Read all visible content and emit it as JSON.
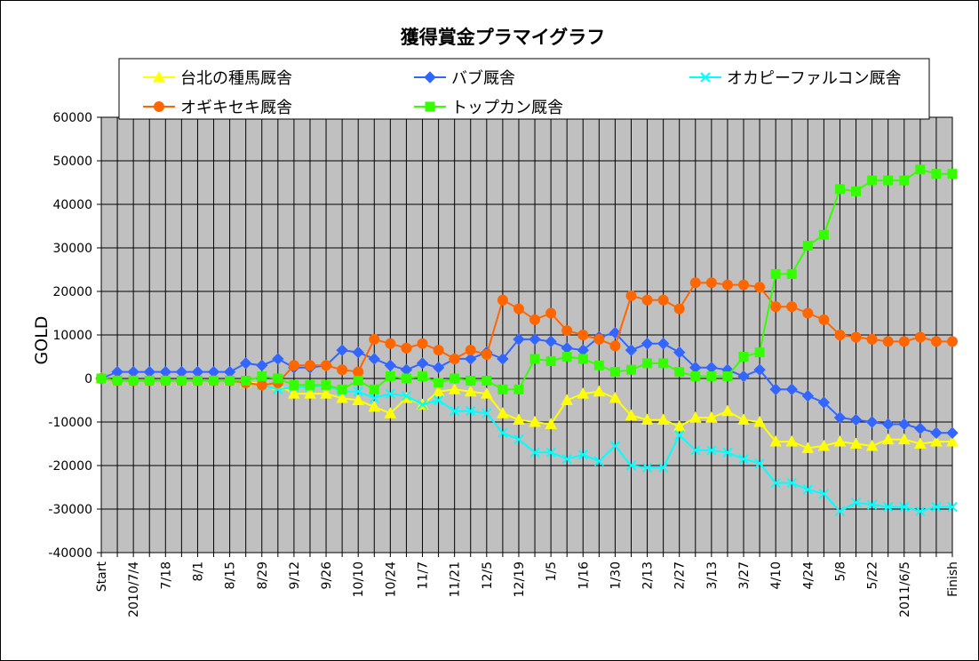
{
  "chart_data": {
    "type": "line",
    "title": "獲得賞金プラマイグラフ",
    "ylabel": "GOLD",
    "xlabel": "",
    "ylim": [
      -40000,
      60000
    ],
    "yticks": [
      60000,
      50000,
      40000,
      30000,
      20000,
      10000,
      0,
      -10000,
      -20000,
      -30000,
      -40000
    ],
    "ytick_labels": [
      "60000",
      "50000",
      "40000",
      "30000",
      "20000",
      "10000",
      "0",
      "-10000",
      "-20000",
      "-30000",
      "-40000"
    ],
    "grid": true,
    "legend_position": "top",
    "n_points": 54,
    "xtick_labels": [
      {
        "i": 0,
        "label": "Start"
      },
      {
        "i": 2,
        "label": "2010/7/4"
      },
      {
        "i": 4,
        "label": "7/18"
      },
      {
        "i": 6,
        "label": "8/1"
      },
      {
        "i": 8,
        "label": "8/15"
      },
      {
        "i": 10,
        "label": "8/29"
      },
      {
        "i": 12,
        "label": "9/12"
      },
      {
        "i": 14,
        "label": "9/26"
      },
      {
        "i": 16,
        "label": "10/10"
      },
      {
        "i": 18,
        "label": "10/24"
      },
      {
        "i": 20,
        "label": "11/7"
      },
      {
        "i": 22,
        "label": "11/21"
      },
      {
        "i": 24,
        "label": "12/5"
      },
      {
        "i": 26,
        "label": "12/19"
      },
      {
        "i": 28,
        "label": "1/5"
      },
      {
        "i": 30,
        "label": "1/16"
      },
      {
        "i": 32,
        "label": "1/30"
      },
      {
        "i": 34,
        "label": "2/13"
      },
      {
        "i": 36,
        "label": "2/27"
      },
      {
        "i": 38,
        "label": "3/13"
      },
      {
        "i": 40,
        "label": "3/27"
      },
      {
        "i": 42,
        "label": "4/10"
      },
      {
        "i": 44,
        "label": "4/24"
      },
      {
        "i": 46,
        "label": "5/8"
      },
      {
        "i": 48,
        "label": "5/22"
      },
      {
        "i": 50,
        "label": "2011/6/5"
      },
      {
        "i": 53,
        "label": "Finish"
      }
    ],
    "series": [
      {
        "name": "台北の種馬厩舎",
        "color": "#ffff00",
        "marker": "triangle",
        "values": [
          0,
          -500,
          -500,
          -500,
          -500,
          -500,
          -500,
          -500,
          -500,
          -1000,
          -1000,
          -1500,
          -3500,
          -3500,
          -3500,
          -4500,
          -5000,
          -6500,
          -8000,
          -4500,
          -6000,
          -3000,
          -2500,
          -3000,
          -3500,
          -8000,
          -9500,
          -10000,
          -10500,
          -5000,
          -3500,
          -3000,
          -4500,
          -8500,
          -9500,
          -9500,
          -11000,
          -9000,
          -9000,
          -7500,
          -9500,
          -10000,
          -14500,
          -14500,
          -16000,
          -15500,
          -14500,
          -15000,
          -15500,
          -14000,
          -14000,
          -15000,
          -14500,
          -14500
        ]
      },
      {
        "name": "バブ厩舎",
        "color": "#3366ff",
        "marker": "diamond",
        "values": [
          0,
          1500,
          1500,
          1500,
          1500,
          1500,
          1500,
          1500,
          1500,
          3500,
          3000,
          4500,
          2500,
          2500,
          3000,
          6500,
          6000,
          4500,
          3000,
          2000,
          3500,
          2500,
          4500,
          4500,
          6000,
          4500,
          9000,
          9000,
          8500,
          7000,
          6500,
          9500,
          10500,
          6500,
          8000,
          8000,
          6000,
          2500,
          2500,
          2000,
          500,
          2000,
          -2500,
          -2500,
          -4000,
          -5500,
          -9000,
          -9500,
          -10000,
          -10500,
          -10500,
          -11500,
          -12500,
          -12500
        ]
      },
      {
        "name": "オカピーファルコン厩舎",
        "color": "#00ffff",
        "marker": "x",
        "values": [
          0,
          -500,
          -500,
          -500,
          -500,
          -500,
          -500,
          -500,
          -500,
          -1000,
          -1500,
          -2500,
          -2000,
          -2000,
          -1500,
          -3000,
          -3000,
          -4500,
          -3500,
          -4000,
          -6000,
          -5000,
          -7500,
          -7500,
          -8000,
          -12500,
          -14000,
          -17000,
          -17000,
          -18500,
          -17500,
          -19000,
          -15500,
          -20000,
          -20500,
          -20500,
          -13000,
          -16500,
          -16500,
          -17000,
          -18500,
          -19500,
          -24000,
          -24000,
          -25500,
          -26500,
          -30500,
          -28500,
          -29000,
          -29500,
          -29500,
          -30500,
          -29500,
          -29500
        ]
      },
      {
        "name": "オギキセキ厩舎",
        "color": "#ff6600",
        "marker": "circle",
        "values": [
          0,
          -500,
          -500,
          -500,
          -500,
          -500,
          -500,
          -500,
          -500,
          -1000,
          -1500,
          -1000,
          3000,
          3000,
          3000,
          2000,
          1500,
          9000,
          8000,
          7000,
          8000,
          6500,
          4500,
          6500,
          5500,
          18000,
          16000,
          13500,
          15000,
          11000,
          10000,
          9000,
          7500,
          19000,
          18000,
          18000,
          16000,
          22000,
          22000,
          21500,
          21500,
          21000,
          16500,
          16500,
          15000,
          13500,
          10000,
          9500,
          9000,
          8500,
          8500,
          9500,
          8500,
          8500
        ]
      },
      {
        "name": "トップカン厩舎",
        "color": "#33ff00",
        "marker": "square",
        "values": [
          0,
          -500,
          -500,
          -500,
          -500,
          -500,
          -500,
          -500,
          -500,
          -500,
          500,
          0,
          -1500,
          -1500,
          -1500,
          -2500,
          -500,
          -2500,
          500,
          0,
          500,
          -1000,
          0,
          -500,
          -500,
          -2500,
          -2500,
          4500,
          4000,
          5000,
          4500,
          3000,
          1500,
          2000,
          3500,
          3500,
          1500,
          500,
          500,
          500,
          5000,
          6000,
          24000,
          24000,
          30500,
          33000,
          43500,
          43000,
          45500,
          45500,
          45500,
          48000,
          47000,
          47000
        ]
      }
    ]
  }
}
